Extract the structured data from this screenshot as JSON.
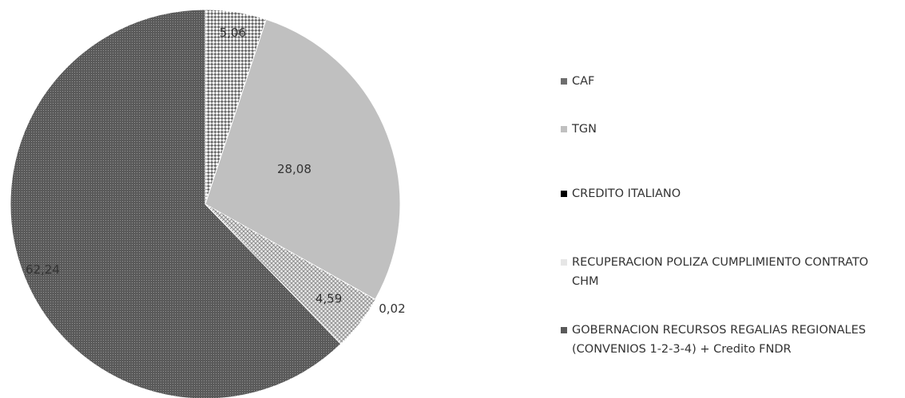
{
  "chart_data": {
    "type": "pie",
    "categories": [
      "CAF",
      "TGN",
      "CREDITO ITALIANO",
      "RECUPERACION POLIZA CUMPLIMIENTO CONTRATO CHM",
      "GOBERNACION RECURSOS REGALIAS REGIONALES (CONVENIOS 1-2-3-4) + Credito FNDR"
    ],
    "values": [
      5.06,
      28.08,
      0.02,
      4.59,
      62.24
    ],
    "value_labels": [
      "5,06",
      "28,08",
      "0,02",
      "4,59",
      "62,24"
    ],
    "colors": [
      "#6e6e6e",
      "#c0c0c0",
      "#000000",
      "#e6e6e6",
      "#5a5a5a"
    ],
    "legend": "right"
  }
}
